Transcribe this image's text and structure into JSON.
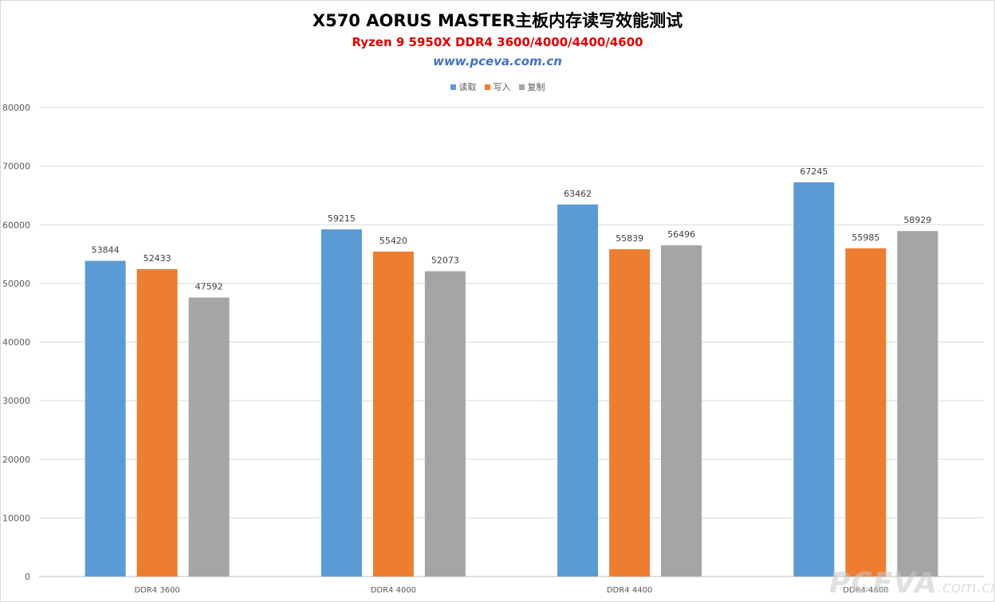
{
  "chart_data": {
    "type": "bar",
    "title": "X570 AORUS MASTER主板内存读写效能测试",
    "subtitle": "Ryzen 9 5950X DDR4 3600/4000/4400/4600",
    "site": "www.pceva.com.cn",
    "categories": [
      "DDR4 3600",
      "DDR4 4000",
      "DDR4 4400",
      "DDR4 4600"
    ],
    "series": [
      {
        "name": "读取",
        "color": "#5b9bd5",
        "values": [
          53844,
          59215,
          63462,
          67245
        ]
      },
      {
        "name": "写入",
        "color": "#ed7d31",
        "values": [
          52433,
          55420,
          55839,
          55985
        ]
      },
      {
        "name": "复制",
        "color": "#a5a5a5",
        "values": [
          47592,
          52073,
          56496,
          58929
        ]
      }
    ],
    "ylim": [
      0,
      80000
    ],
    "yticks": [
      "0",
      "10000",
      "20000",
      "30000",
      "40000",
      "50000",
      "60000",
      "70000",
      "80000"
    ],
    "grid": true,
    "legend": "top-center"
  },
  "colors": {
    "subtitle": "#e00000",
    "site": "#4472c4"
  },
  "watermark": {
    "main": "PCEVA",
    "sub": ".com.cn"
  }
}
